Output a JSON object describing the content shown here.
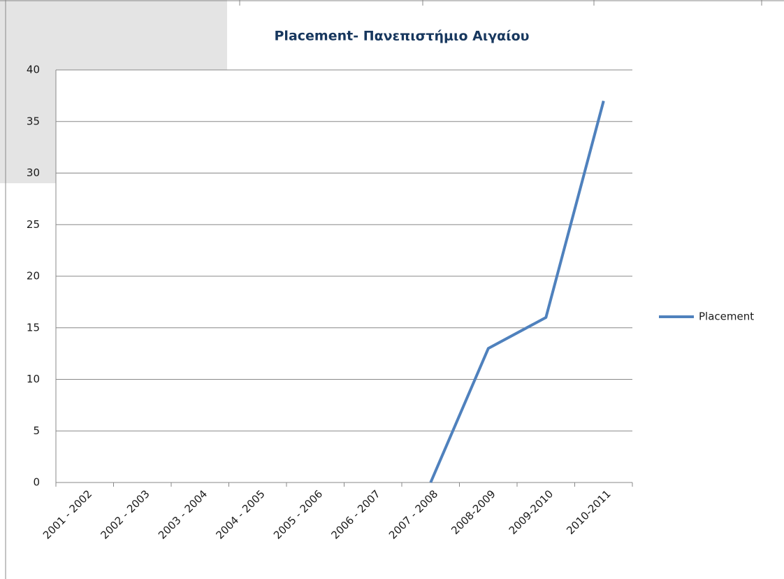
{
  "chart_data": {
    "type": "line",
    "title": "Placement- Πανεπιστήμιο Αιγαίου",
    "categories": [
      "2001 - 2002",
      "2002 - 2003",
      "2003 - 2004",
      "2004 - 2005",
      "2005 - 2006",
      "2006 - 2007",
      "2007 - 2008",
      "2008-2009",
      "2009-2010",
      "2010-2011"
    ],
    "series": [
      {
        "name": "Placement",
        "color": "#4f81bd",
        "values": [
          null,
          null,
          null,
          null,
          null,
          null,
          0,
          13,
          16,
          37
        ]
      }
    ],
    "ylim": [
      0,
      40
    ],
    "yticks": [
      0,
      5,
      10,
      15,
      20,
      25,
      30,
      35,
      40
    ],
    "grid": true,
    "legend": "right"
  }
}
